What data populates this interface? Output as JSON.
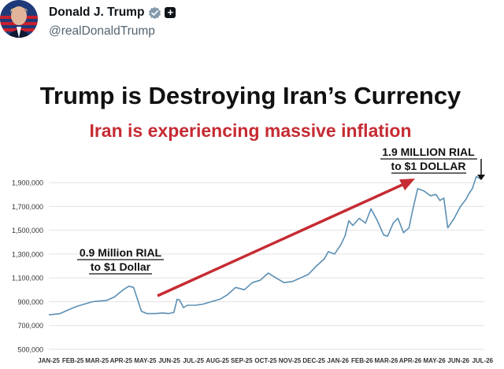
{
  "post": {
    "display_name": "Donald J. Trump",
    "handle": "@realDonaldTrump"
  },
  "colors": {
    "line": "#5b8fb3",
    "arrow": "#c62b33",
    "subtitle": "#c62b33",
    "grid": "#e2e2e2"
  },
  "chart_data": {
    "type": "line",
    "title": "Trump is Destroying Iran’s Currency",
    "subtitle": "Iran is experiencing massive inflation",
    "x_tick_labels": [
      "JAN-25",
      "FEB-25",
      "MAR-25",
      "APR-25",
      "MAY-25",
      "JUN-25",
      "JUL-25",
      "AUG-25",
      "SEP-25",
      "OCT-25",
      "NOV-25",
      "DEC-25",
      "JAN-26",
      "FEB-26",
      "MAR-26",
      "APR-26",
      "MAY-26",
      "JUN-26",
      "JUL-26"
    ],
    "y_tick_labels": [
      "500,000",
      "700,000",
      "900,000",
      "1,100,000",
      "1,300,000",
      "1,500,000",
      "1,700,000",
      "1,900,000"
    ],
    "ylim": [
      500000,
      1980000
    ],
    "grid": true,
    "annotations": [
      {
        "lines": [
          "0.9 Million RIAL",
          "to $1 Dollar"
        ]
      },
      {
        "lines": [
          "1.9 MILLION RIAL",
          "to $1 DOLLAR"
        ]
      }
    ],
    "series": [
      {
        "x": [
          "2025-01-01",
          "2025-01-08",
          "2025-01-15",
          "2025-01-25",
          "2025-02-05",
          "2025-02-15",
          "2025-02-25",
          "2025-03-05",
          "2025-03-15",
          "2025-03-25",
          "2025-04-05",
          "2025-04-12",
          "2025-04-18",
          "2025-04-22",
          "2025-04-28",
          "2025-05-05",
          "2025-05-15",
          "2025-05-25",
          "2025-06-01",
          "2025-06-08",
          "2025-06-12",
          "2025-06-15",
          "2025-06-20",
          "2025-06-25",
          "2025-07-05",
          "2025-07-15",
          "2025-07-25",
          "2025-08-05",
          "2025-08-15",
          "2025-08-25",
          "2025-09-05",
          "2025-09-15",
          "2025-09-25",
          "2025-10-05",
          "2025-10-15",
          "2025-10-25",
          "2025-11-05",
          "2025-11-15",
          "2025-11-25",
          "2025-12-05",
          "2025-12-15",
          "2025-12-20",
          "2025-12-28",
          "2026-01-05",
          "2026-01-10",
          "2026-01-15",
          "2026-01-20",
          "2026-01-28",
          "2026-02-05",
          "2026-02-12",
          "2026-02-20",
          "2026-02-28",
          "2026-03-05",
          "2026-03-12",
          "2026-03-18",
          "2026-03-25",
          "2026-04-01",
          "2026-04-05",
          "2026-04-12",
          "2026-04-20",
          "2026-04-28",
          "2026-05-05",
          "2026-05-10",
          "2026-05-15",
          "2026-05-20",
          "2026-05-28",
          "2026-06-05",
          "2026-06-12",
          "2026-06-15",
          "2026-06-20",
          "2026-06-25",
          "2026-07-01"
        ],
        "values": [
          790000,
          795000,
          800000,
          830000,
          860000,
          880000,
          900000,
          905000,
          910000,
          940000,
          1000000,
          1030000,
          1020000,
          940000,
          820000,
          800000,
          800000,
          805000,
          800000,
          810000,
          920000,
          915000,
          850000,
          870000,
          870000,
          880000,
          900000,
          920000,
          960000,
          1020000,
          1000000,
          1060000,
          1080000,
          1140000,
          1100000,
          1060000,
          1070000,
          1100000,
          1130000,
          1200000,
          1260000,
          1320000,
          1300000,
          1380000,
          1450000,
          1580000,
          1540000,
          1600000,
          1560000,
          1680000,
          1580000,
          1460000,
          1450000,
          1560000,
          1600000,
          1480000,
          1520000,
          1650000,
          1850000,
          1830000,
          1790000,
          1800000,
          1750000,
          1770000,
          1520000,
          1600000,
          1700000,
          1760000,
          1800000,
          1850000,
          1950000,
          1930000
        ]
      }
    ]
  }
}
